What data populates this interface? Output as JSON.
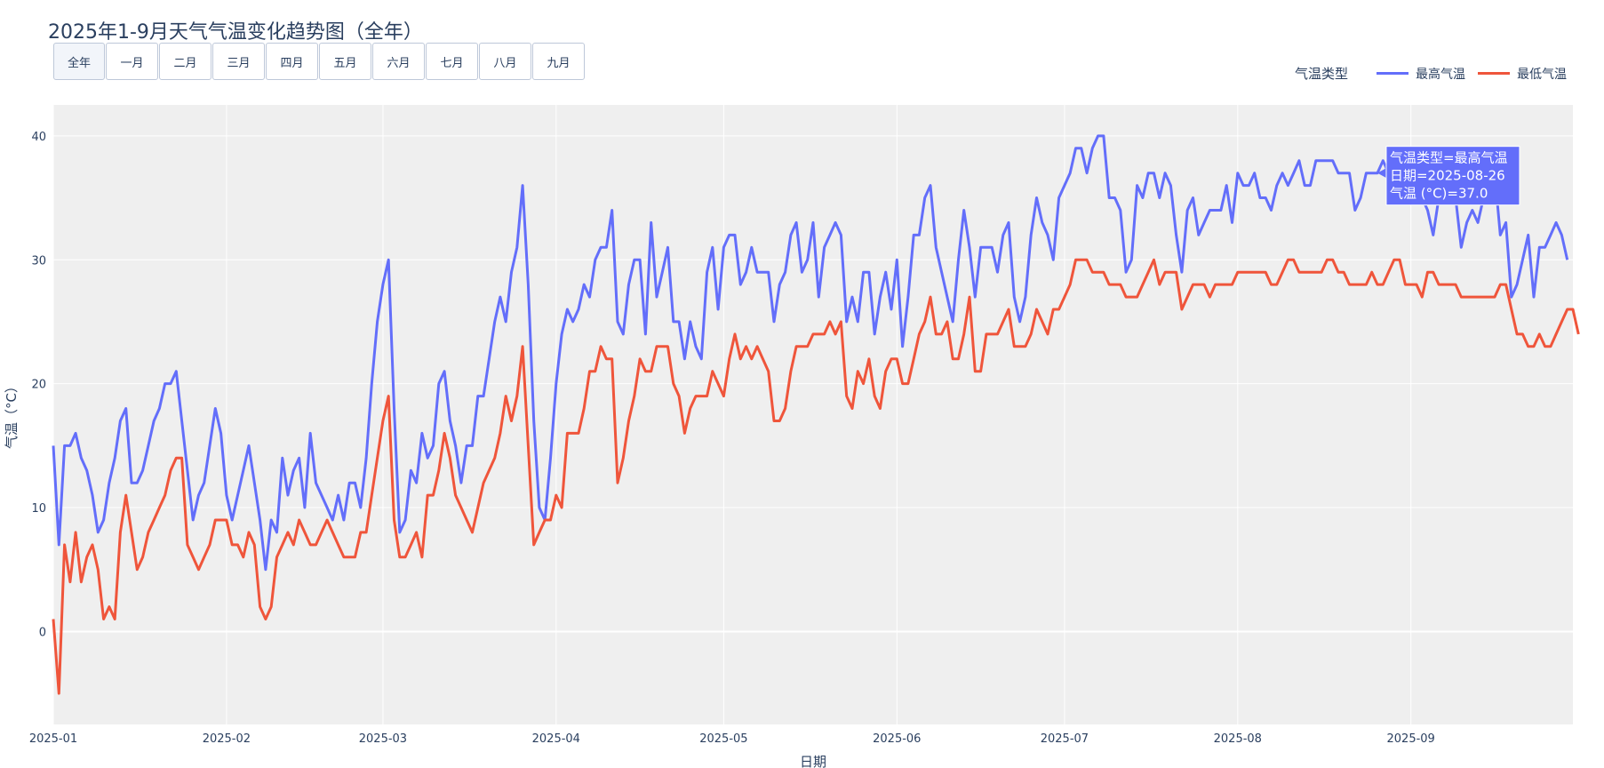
{
  "title": "2025年1-9月天气气温变化趋势图（全年）",
  "buttons": [
    {
      "label": "全年",
      "active": true
    },
    {
      "label": "一月"
    },
    {
      "label": "二月"
    },
    {
      "label": "三月"
    },
    {
      "label": "四月"
    },
    {
      "label": "五月"
    },
    {
      "label": "六月"
    },
    {
      "label": "七月"
    },
    {
      "label": "八月"
    },
    {
      "label": "九月"
    }
  ],
  "legend": {
    "title": "气温类型",
    "items": [
      {
        "name": "最高气温",
        "color": "#636efa"
      },
      {
        "name": "最低气温",
        "color": "#ef553b"
      }
    ]
  },
  "tooltip": {
    "line1": "气温类型=最高气温",
    "line2": "日期=2025-08-26",
    "line3": "气温 (°C)=37.0"
  },
  "chart_data": {
    "type": "line",
    "xlabel": "日期",
    "ylabel": "气温（°C）",
    "x_start": "2025-01-01",
    "x_end": "2025-09-30",
    "xlim": [
      "2025-01-01",
      "2025-09-30"
    ],
    "ylim": [
      -7.5,
      42.5
    ],
    "yticks": [
      0,
      10,
      20,
      30,
      40
    ],
    "xticks": [
      "2025-01",
      "2025-02",
      "2025-03",
      "2025-04",
      "2025-05",
      "2025-06",
      "2025-07",
      "2025-08",
      "2025-09"
    ],
    "grid": true,
    "legend_position": "top-right",
    "series": [
      {
        "name": "最高气温",
        "color": "#636efa",
        "values": [
          15,
          7,
          15,
          15,
          16,
          14,
          13,
          11,
          8,
          9,
          12,
          14,
          17,
          18,
          12,
          12,
          13,
          15,
          17,
          18,
          20,
          20,
          21,
          17,
          13,
          9,
          11,
          12,
          15,
          18,
          16,
          11,
          9,
          11,
          13,
          15,
          12,
          9,
          5,
          9,
          8,
          14,
          11,
          13,
          14,
          10,
          16,
          12,
          11,
          10,
          9,
          11,
          9,
          12,
          12,
          10,
          14,
          20,
          25,
          28,
          30,
          18,
          8,
          9,
          13,
          12,
          16,
          14,
          15,
          20,
          21,
          17,
          15,
          12,
          15,
          15,
          19,
          19,
          22,
          25,
          27,
          25,
          29,
          31,
          36,
          28,
          17,
          10,
          9,
          14,
          20,
          24,
          26,
          25,
          26,
          28,
          27,
          30,
          31,
          31,
          34,
          25,
          24,
          28,
          30,
          30,
          24,
          33,
          27,
          29,
          31,
          25,
          25,
          22,
          25,
          23,
          22,
          29,
          31,
          26,
          31,
          32,
          32,
          28,
          29,
          31,
          29,
          29,
          29,
          25,
          28,
          29,
          32,
          33,
          29,
          30,
          33,
          27,
          31,
          32,
          33,
          32,
          25,
          27,
          25,
          29,
          29,
          24,
          27,
          29,
          26,
          30,
          23,
          27,
          32,
          32,
          35,
          36,
          31,
          29,
          27,
          25,
          30,
          34,
          31,
          27,
          31,
          31,
          31,
          29,
          32,
          33,
          27,
          25,
          27,
          32,
          35,
          33,
          32,
          30,
          35,
          36,
          37,
          39,
          39,
          37,
          39,
          40,
          40,
          35,
          35,
          34,
          29,
          30,
          36,
          35,
          37,
          37,
          35,
          37,
          36,
          32,
          29,
          34,
          35,
          32,
          33,
          34,
          34,
          34,
          36,
          33,
          37,
          36,
          36,
          37,
          35,
          35,
          34,
          36,
          37,
          36,
          37,
          38,
          36,
          36,
          38,
          38,
          38,
          38,
          37,
          37,
          37,
          34,
          35,
          37,
          37,
          37,
          38,
          37,
          37,
          37,
          37,
          36,
          37,
          35,
          34,
          32,
          35,
          37,
          36,
          35,
          31,
          33,
          34,
          33,
          35,
          37,
          37,
          32,
          33,
          27,
          28,
          30,
          32,
          27,
          31,
          31,
          32,
          33,
          32,
          30
        ]
      },
      {
        "name": "最低气温",
        "color": "#ef553b",
        "values": [
          1,
          -5,
          7,
          4,
          8,
          4,
          6,
          7,
          5,
          1,
          2,
          1,
          8,
          11,
          8,
          5,
          6,
          8,
          9,
          10,
          11,
          13,
          14,
          14,
          7,
          6,
          5,
          6,
          7,
          9,
          9,
          9,
          7,
          7,
          6,
          8,
          7,
          2,
          1,
          2,
          6,
          7,
          8,
          7,
          9,
          8,
          7,
          7,
          8,
          9,
          8,
          7,
          6,
          6,
          6,
          8,
          8,
          11,
          14,
          17,
          19,
          9,
          6,
          6,
          7,
          8,
          6,
          11,
          11,
          13,
          16,
          14,
          11,
          10,
          9,
          8,
          10,
          12,
          13,
          14,
          16,
          19,
          17,
          19,
          23,
          15,
          7,
          8,
          9,
          9,
          11,
          10,
          16,
          16,
          16,
          18,
          21,
          21,
          23,
          22,
          22,
          12,
          14,
          17,
          19,
          22,
          21,
          21,
          23,
          23,
          23,
          20,
          19,
          16,
          18,
          19,
          19,
          19,
          21,
          20,
          19,
          22,
          24,
          22,
          23,
          22,
          23,
          22,
          21,
          17,
          17,
          18,
          21,
          23,
          23,
          23,
          24,
          24,
          24,
          25,
          24,
          25,
          19,
          18,
          21,
          20,
          22,
          19,
          18,
          21,
          22,
          22,
          20,
          20,
          22,
          24,
          25,
          27,
          24,
          24,
          25,
          22,
          22,
          24,
          27,
          21,
          21,
          24,
          24,
          24,
          25,
          26,
          23,
          23,
          23,
          24,
          26,
          25,
          24,
          26,
          26,
          27,
          28,
          30,
          30,
          30,
          29,
          29,
          29,
          28,
          28,
          28,
          27,
          27,
          27,
          28,
          29,
          30,
          28,
          29,
          29,
          29,
          26,
          27,
          28,
          28,
          28,
          27,
          28,
          28,
          28,
          28,
          29,
          29,
          29,
          29,
          29,
          29,
          28,
          28,
          29,
          30,
          30,
          29,
          29,
          29,
          29,
          29,
          30,
          30,
          29,
          29,
          28,
          28,
          28,
          28,
          29,
          28,
          28,
          29,
          30,
          30,
          28,
          28,
          28,
          27,
          29,
          29,
          28,
          28,
          28,
          28,
          27,
          27,
          27,
          27,
          27,
          27,
          27,
          28,
          28,
          26,
          24,
          24,
          23,
          23,
          24,
          23,
          23,
          24,
          25,
          26,
          26,
          24
        ]
      }
    ]
  }
}
